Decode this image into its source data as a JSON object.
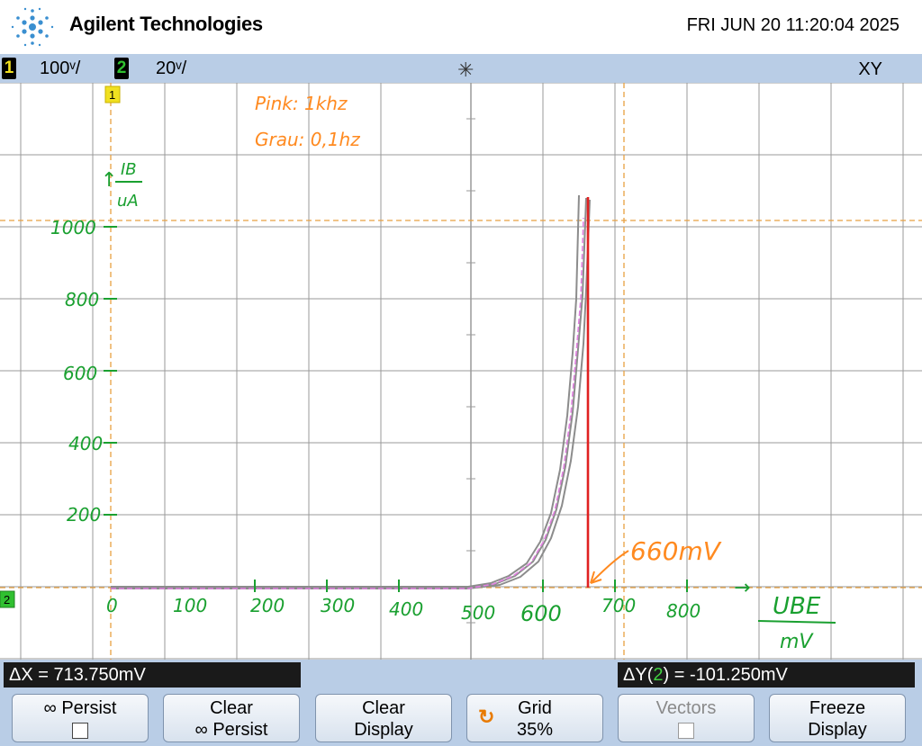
{
  "header": {
    "brand": "Agilent Technologies",
    "datetime": "FRI JUN 20 11:20:04 2025"
  },
  "status_bar": {
    "channels": [
      {
        "number": "1",
        "scale": "100ᵛ/",
        "color": "#f0e020"
      },
      {
        "number": "2",
        "scale": "20ᵛ/",
        "color": "#30c030"
      }
    ],
    "trigger_icon": "trigger-snowflake-icon",
    "mode": "XY"
  },
  "screen": {
    "ch1_marker": "1",
    "ch2_marker": "2",
    "colors": {
      "grid": "#9a9a9a",
      "trace": "#8c8c8c",
      "trace_pink": "#e080e0",
      "cursor": "#e8a040",
      "marker": "#e02020",
      "annotation_green": "#1aa030",
      "annotation_orange": "#ff8a20"
    },
    "annotations": {
      "pink_label": "Pink: 1khz",
      "gray_label": "Grau: 0,1hz",
      "y_axis_top": "IB",
      "y_axis_unit": "uA",
      "y_ticks": [
        "1000",
        "800",
        "600",
        "400",
        "200"
      ],
      "x_ticks": [
        "0",
        "100",
        "200",
        "300",
        "400",
        "500",
        "600",
        "700",
        "800"
      ],
      "x_axis_top": "UBE",
      "x_axis_unit": "mV",
      "marker_label": "660mV"
    }
  },
  "readouts": {
    "dx": "ΔX = 713.750mV",
    "dy_prefix": "ΔY(",
    "dy_channel": "2",
    "dy_value": ") = -101.250mV"
  },
  "softkeys": [
    {
      "line1": "∞ Persist",
      "line2": "",
      "checkbox": true,
      "disabled": false
    },
    {
      "line1": "Clear",
      "line2": "∞ Persist",
      "checkbox": false,
      "disabled": false
    },
    {
      "line1": "Clear",
      "line2": "Display",
      "checkbox": false,
      "disabled": false
    },
    {
      "line1": "Grid",
      "line2": "35%",
      "checkbox": false,
      "disabled": false,
      "icon": "rotate-knob-icon"
    },
    {
      "line1": "Vectors",
      "line2": "",
      "checkbox": true,
      "disabled": true
    },
    {
      "line1": "Freeze",
      "line2": "Display",
      "checkbox": false,
      "disabled": false
    }
  ]
}
